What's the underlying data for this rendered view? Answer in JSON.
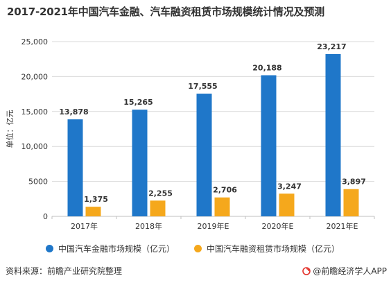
{
  "title": "2017-2021年中国汽车金融、汽车融资租赁市场规模统计情况及预测",
  "chart_data": {
    "type": "bar",
    "categories": [
      "2017年",
      "2018年",
      "2019年E",
      "2020年E",
      "2021年E"
    ],
    "series": [
      {
        "name": "中国汽车金融市场规模（亿元）",
        "values": [
          13878,
          15265,
          17555,
          20188,
          23217
        ],
        "labels": [
          "13,878",
          "15,265",
          "17,555",
          "20,188",
          "23,217"
        ],
        "color": "#1f77c9"
      },
      {
        "name": "中国汽车融资租赁市场规模（亿元）",
        "values": [
          1375,
          2255,
          2706,
          3247,
          3897
        ],
        "labels": [
          "1,375",
          "2,255",
          "2,706",
          "3,247",
          "3,897"
        ],
        "color": "#f5a81c"
      }
    ],
    "ylabel": "单位：亿元",
    "ylim": [
      0,
      25000
    ],
    "yticks": [
      0,
      5000,
      10000,
      15000,
      20000,
      25000
    ],
    "ytick_labels": [
      "0",
      "5000",
      "10,000",
      "15,000",
      "20,000",
      "25,000"
    ],
    "grid": true,
    "legend": "bottom"
  },
  "footer": {
    "source": "资料来源：前瞻产业研究院整理",
    "brand": "@前瞻经济学人APP"
  },
  "colors": {
    "grid": "#d9d9d9",
    "axis": "#bfbfbf",
    "text": "#333333",
    "brand_logo": "#e3322b"
  },
  "icons": {
    "brand_logo": "swirl-logo-icon"
  }
}
